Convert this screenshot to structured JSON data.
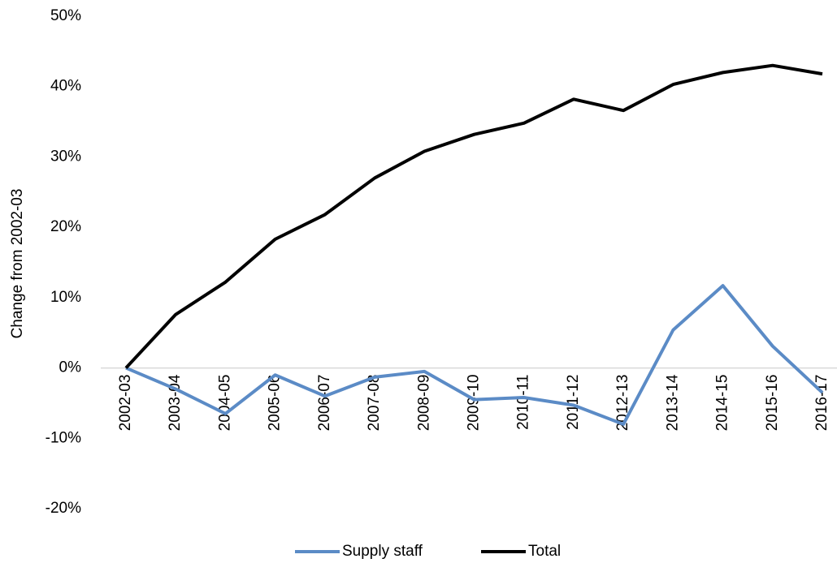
{
  "chart_data": {
    "type": "line",
    "y_label": "Change from 2002-03",
    "categories": [
      "2002-03",
      "2003-04",
      "2004-05",
      "2005-06",
      "2006-07",
      "2007-08",
      "2008-09",
      "2009-10",
      "2010-11",
      "2011-12",
      "2012-13",
      "2013-14",
      "2014-15",
      "2015-16",
      "2016-17"
    ],
    "series": [
      {
        "name": "Supply staff",
        "color": "#5b8bc6",
        "values": [
          0,
          -3,
          -6.5,
          -1,
          -4,
          -1.3,
          -0.5,
          -4.5,
          -4.2,
          -5.3,
          -8,
          5.4,
          11.7,
          3.1,
          -3.5
        ]
      },
      {
        "name": "Total",
        "color": "#000000",
        "values": [
          0,
          7.6,
          12.2,
          18.3,
          21.8,
          27,
          30.8,
          33.2,
          34.8,
          38.2,
          36.6,
          40.3,
          42,
          43,
          41.8
        ]
      }
    ],
    "ylim": [
      -20,
      50
    ],
    "yticks": [
      {
        "value": -20,
        "label": "-20%"
      },
      {
        "value": -10,
        "label": "-10%"
      },
      {
        "value": 0,
        "label": "0%"
      },
      {
        "value": 10,
        "label": "10%"
      },
      {
        "value": 20,
        "label": "20%"
      },
      {
        "value": 30,
        "label": "30%"
      },
      {
        "value": 40,
        "label": "40%"
      },
      {
        "value": 50,
        "label": "50%"
      }
    ],
    "grid": false,
    "legend": "bottom"
  }
}
